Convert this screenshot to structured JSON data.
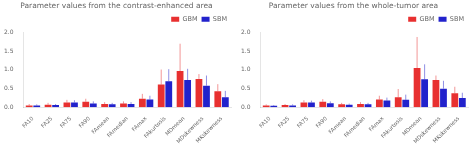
{
  "chart_data": [
    {
      "type": "bar",
      "title": "Parameter values from the contrast-enhanced area",
      "categories": [
        "FA10",
        "FA25",
        "FA75",
        "FA90",
        "FAmean",
        "FAmedian",
        "FAmax",
        "FAkurtosis",
        "MDmean",
        "MDskewness",
        "MKskewness"
      ],
      "series": [
        {
          "name": "GBM",
          "color": "#e83030",
          "values": [
            0.05,
            0.07,
            0.13,
            0.15,
            0.09,
            0.1,
            0.23,
            0.61,
            0.97,
            0.76,
            0.43
          ],
          "errors": [
            0.04,
            0.05,
            0.07,
            0.08,
            0.05,
            0.06,
            0.13,
            0.4,
            0.73,
            0.13,
            0.19
          ]
        },
        {
          "name": "SBM",
          "color": "#2222cc",
          "values": [
            0.05,
            0.06,
            0.13,
            0.1,
            0.08,
            0.09,
            0.21,
            0.7,
            0.73,
            0.58,
            0.27
          ],
          "errors": [
            0.03,
            0.03,
            0.06,
            0.06,
            0.04,
            0.05,
            0.1,
            0.32,
            0.3,
            0.27,
            0.17
          ]
        }
      ],
      "ylim": [
        0,
        2.0
      ],
      "yticks": [
        {
          "value": 0,
          "label": "0.0"
        },
        0.5,
        {
          "value": 1,
          "label": "1.0"
        },
        1.5,
        {
          "value": 2,
          "label": "2.0"
        }
      ],
      "grid": false,
      "legend": "upper right"
    },
    {
      "type": "bar",
      "title": "Parameter values from the whole-tumor area",
      "categories": [
        "FA10",
        "FA25",
        "FA75",
        "FA90",
        "FAmean",
        "FAmedian",
        "FAmax",
        "FAkurtosis",
        "MDmean",
        "MDskewness",
        "MKskewness"
      ],
      "series": [
        {
          "name": "GBM",
          "color": "#e83030",
          "values": [
            0.05,
            0.06,
            0.13,
            0.15,
            0.08,
            0.09,
            0.21,
            0.27,
            1.05,
            0.73,
            0.38
          ],
          "errors": [
            0.03,
            0.03,
            0.06,
            0.07,
            0.04,
            0.05,
            0.1,
            0.22,
            0.83,
            0.12,
            0.17
          ]
        },
        {
          "name": "SBM",
          "color": "#2222cc",
          "values": [
            0.04,
            0.05,
            0.13,
            0.11,
            0.07,
            0.08,
            0.18,
            0.2,
            0.75,
            0.5,
            0.25
          ],
          "errors": [
            0.02,
            0.03,
            0.05,
            0.05,
            0.03,
            0.04,
            0.08,
            0.14,
            0.4,
            0.21,
            0.14
          ]
        }
      ],
      "ylim": [
        0,
        2.0
      ],
      "yticks": [
        {
          "value": 0,
          "label": "0.0"
        },
        0.5,
        {
          "value": 1,
          "label": "1.0"
        },
        1.5,
        {
          "value": 2,
          "label": "2.0"
        }
      ],
      "grid": false,
      "legend": "upper right"
    }
  ]
}
